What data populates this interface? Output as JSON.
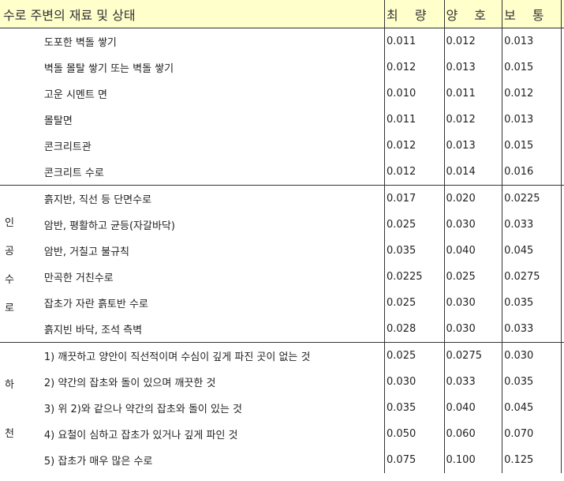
{
  "header": {
    "title": "수로 주변의 재료 및 상태",
    "col_min": "최 량",
    "col_good": "양 호",
    "col_normal": "보 통"
  },
  "groups": [
    {
      "label": [],
      "rows": [
        {
          "desc": "도포한 벽돌 쌓기",
          "v1": "0.011",
          "v2": "0.012",
          "v3": "0.013"
        },
        {
          "desc": "벽돌 몰탈 쌓기 또는 벽돌 쌓기",
          "v1": "0.012",
          "v2": "0.013",
          "v3": "0.015"
        },
        {
          "desc": "고운 시멘트 면",
          "v1": "0.010",
          "v2": "0.011",
          "v3": "0.012"
        },
        {
          "desc": "몰탈면",
          "v1": "0.011",
          "v2": "0.012",
          "v3": "0.013"
        },
        {
          "desc": "콘크리트관",
          "v1": "0.012",
          "v2": "0.013",
          "v3": "0.015"
        },
        {
          "desc": "콘크리트 수로",
          "v1": "0.012",
          "v2": "0.014",
          "v3": "0.016"
        }
      ]
    },
    {
      "label": [
        "인",
        "공",
        "수",
        "로"
      ],
      "rows": [
        {
          "desc": "흙지반, 직선 등 단면수로",
          "v1": "0.017",
          "v2": "0.020",
          "v3": "0.0225"
        },
        {
          "desc": "암반, 평활하고 균등(자갈바닥)",
          "v1": "0.025",
          "v2": "0.030",
          "v3": "0.033"
        },
        {
          "desc": "암반, 거칠고 불규칙",
          "v1": "0.035",
          "v2": "0.040",
          "v3": "0.045"
        },
        {
          "desc": "만곡한 거친수로",
          "v1": "0.0225",
          "v2": "0.025",
          "v3": "0.0275"
        },
        {
          "desc": "잡초가 자란 흙토반 수로",
          "v1": "0.025",
          "v2": "0.030",
          "v3": "0.035"
        },
        {
          "desc": "흙지빈 바닥, 조석 측벽",
          "v1": "0.028",
          "v2": "0.030",
          "v3": "0.033"
        }
      ]
    },
    {
      "label": [
        "하",
        "천"
      ],
      "rows": [
        {
          "desc": "1) 깨끗하고 양안이 직선적이며 수심이  깊게 파진 곳이 없는 것",
          "v1": "0.025",
          "v2": "0.0275",
          "v3": "0.030"
        },
        {
          "desc": "2) 약간의 잡초와 돌이 있으며 깨끗한 것",
          "v1": "0.030",
          "v2": "0.033",
          "v3": "0.035"
        },
        {
          "desc": "3) 위 2)와 같으나 약간의 잡초와 돌이 있는 것",
          "v1": "0.035",
          "v2": "0.040",
          "v3": "0.045"
        },
        {
          "desc": "4) 요철이 심하고 잡초가 있거나 깊게 파인 것",
          "v1": "0.050",
          "v2": "0.060",
          "v3": "0.070"
        },
        {
          "desc": "5) 잡초가 매우 많은 수로",
          "v1": "0.075",
          "v2": "0.100",
          "v3": "0.125"
        }
      ]
    }
  ]
}
